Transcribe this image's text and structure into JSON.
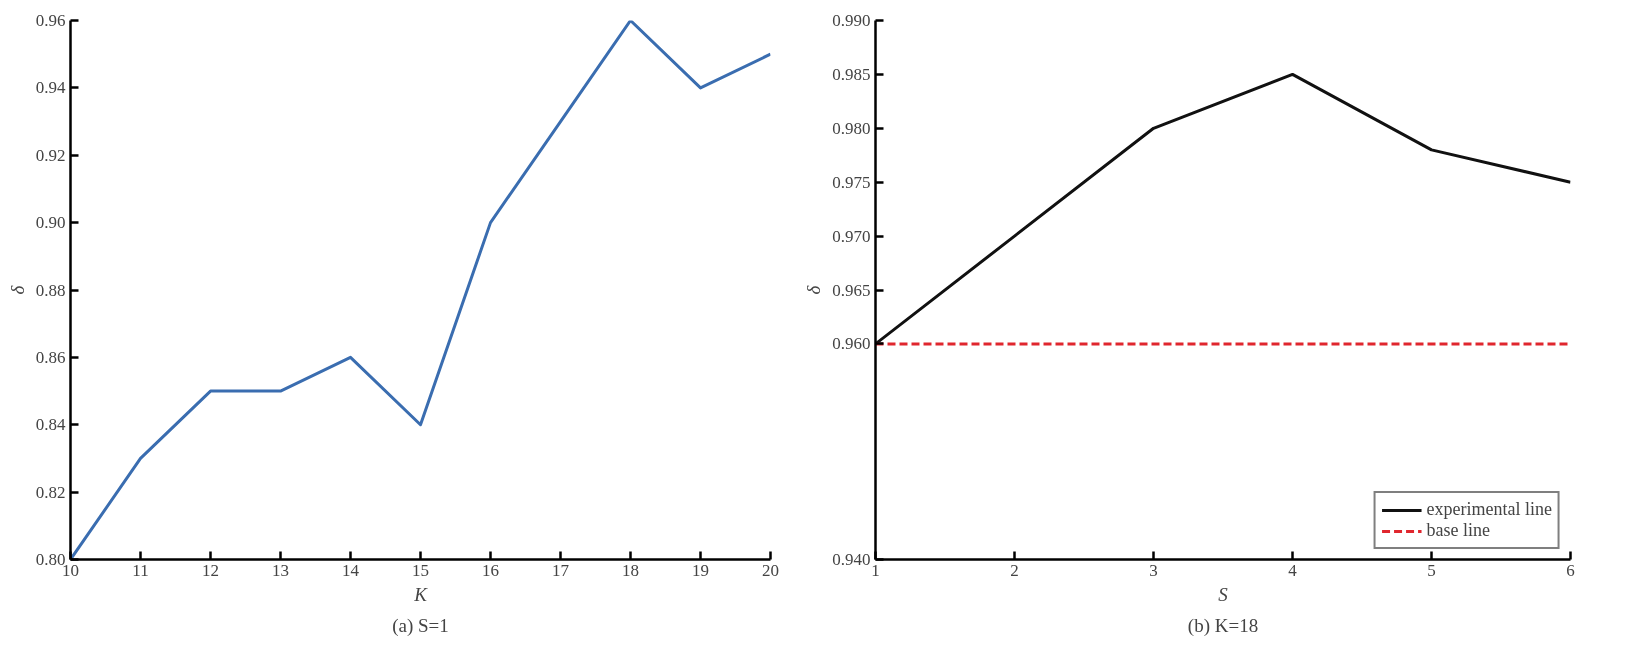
{
  "chart_data": [
    {
      "type": "line",
      "title": "(a) S=1",
      "xlabel": "K",
      "ylabel": "δ",
      "x": [
        10,
        11,
        12,
        13,
        14,
        15,
        16,
        17,
        18,
        19,
        20
      ],
      "series": [
        {
          "color": "#3a6db0",
          "values": [
            0.8,
            0.83,
            0.85,
            0.85,
            0.86,
            0.84,
            0.9,
            0.93,
            0.96,
            0.94,
            0.95
          ]
        }
      ],
      "xlim": [
        10,
        20
      ],
      "xticks": [
        10,
        11,
        12,
        13,
        14,
        15,
        16,
        17,
        18,
        19,
        20
      ],
      "ylim": [
        0.8,
        0.96
      ],
      "yticks": [
        {
          "value": 0.8,
          "label": "0.80"
        },
        {
          "value": 0.82,
          "label": "0.82"
        },
        {
          "value": 0.84,
          "label": "0.84"
        },
        {
          "value": 0.86,
          "label": "0.86"
        },
        {
          "value": 0.88,
          "label": "0.88"
        },
        {
          "value": 0.9,
          "label": "0.90"
        },
        {
          "value": 0.92,
          "label": "0.92"
        },
        {
          "value": 0.94,
          "label": "0.94"
        },
        {
          "value": 0.96,
          "label": "0.96"
        }
      ],
      "grid": false,
      "legend": false,
      "line_style": "solid"
    },
    {
      "type": "line",
      "title": "(b) K=18",
      "xlabel": "S",
      "ylabel": "δ",
      "x": [
        1,
        2,
        3,
        4,
        5,
        6
      ],
      "series": [
        {
          "name": "experimental line",
          "color": "#111111",
          "line_style": "solid",
          "values": [
            0.96,
            0.97,
            0.98,
            0.985,
            0.978,
            0.975
          ]
        },
        {
          "name": "base line",
          "color": "#e0262e",
          "line_style": "dashed",
          "values": [
            0.96,
            0.96,
            0.96,
            0.96,
            0.96,
            0.96
          ]
        }
      ],
      "xlim": [
        1,
        6
      ],
      "xticks": [
        1,
        2,
        3,
        4,
        5,
        6
      ],
      "ylim": [
        0.94,
        0.99
      ],
      "yticks": [
        {
          "value": 0.94,
          "label": "0.940"
        },
        {
          "value": 0.96,
          "label": "0.960"
        },
        {
          "value": 0.965,
          "label": "0.965"
        },
        {
          "value": 0.97,
          "label": "0.970"
        },
        {
          "value": 0.975,
          "label": "0.975"
        },
        {
          "value": 0.98,
          "label": "0.980"
        },
        {
          "value": 0.985,
          "label": "0.985"
        },
        {
          "value": 0.99,
          "label": "0.990"
        }
      ],
      "grid": false,
      "legend": "bottom right"
    }
  ]
}
